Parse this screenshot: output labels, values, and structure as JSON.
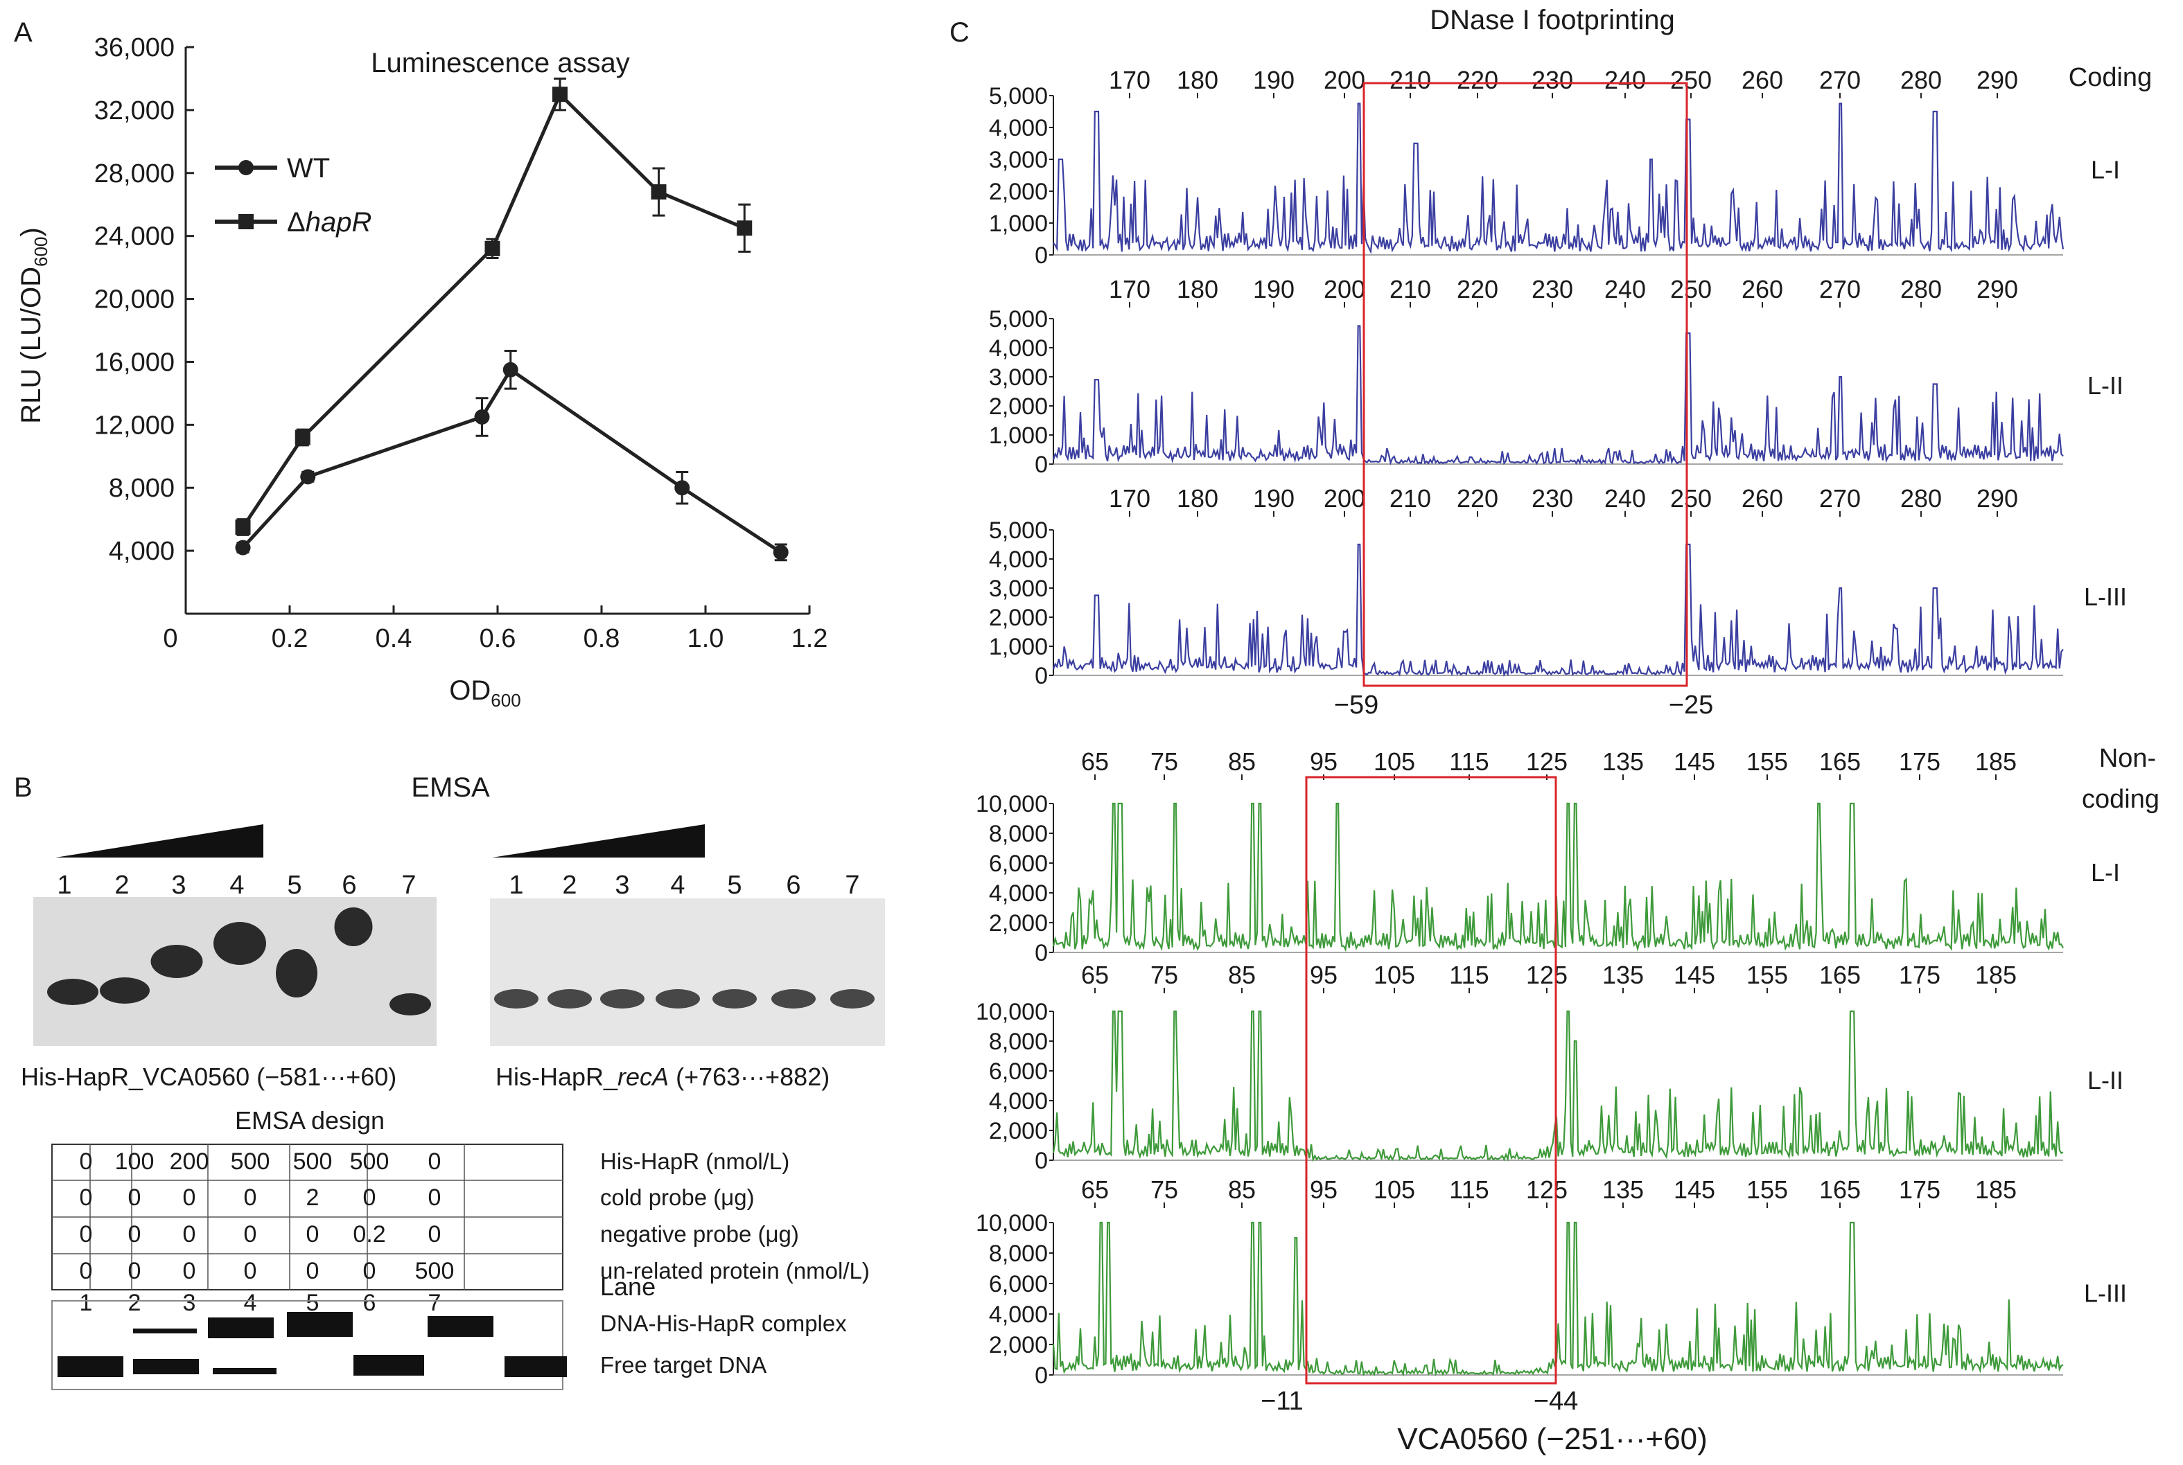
{
  "panelA": {
    "letter": "A",
    "title": "Luminescence assay",
    "ylabel": "RLU (LU/OD",
    "ylabel_sub": "600",
    "ylabel_close": ")",
    "xlabel": "OD",
    "xlabel_sub": "600",
    "legend_wt": "WT",
    "legend_delta": "Δ",
    "legend_hapr": "hapR"
  },
  "panelB": {
    "letter": "B",
    "title": "EMSA",
    "caption_left": "His-HapR_VCA0560 (−581···+60)",
    "caption_right_pre": "His-HapR_",
    "caption_right_gene": "recA",
    "caption_right_post": " (+763···+882)",
    "lanes": [
      "1",
      "2",
      "3",
      "4",
      "5",
      "6",
      "7"
    ],
    "design_title": "EMSA design",
    "design_rows": [
      {
        "label": "His-HapR (nmol/L)",
        "values": [
          "0",
          "100",
          "200",
          "500",
          "500",
          "500",
          "0"
        ]
      },
      {
        "label": "cold probe (μg)",
        "values": [
          "0",
          "0",
          "0",
          "0",
          "2",
          "0",
          "0"
        ]
      },
      {
        "label": "negative probe (μg)",
        "values": [
          "0",
          "0",
          "0",
          "0",
          "0",
          "0.2",
          "0"
        ]
      },
      {
        "label": "un-related protein (nmol/L)",
        "values": [
          "0",
          "0",
          "0",
          "0",
          "0",
          "0",
          "500"
        ]
      }
    ],
    "lane_label": "Lane",
    "complex_label": "DNA-His-HapR complex",
    "free_label": "Free target DNA"
  },
  "panelC": {
    "letter": "C",
    "title": "DNase I footprinting",
    "coding_label": "Coding",
    "noncoding_label_1": "Non-",
    "noncoding_label_2": "coding",
    "lane_names": [
      "L-I",
      "L-II",
      "L-III"
    ],
    "coding_ticks": [
      "170",
      "180",
      "190",
      "200",
      "210",
      "220",
      "230",
      "240",
      "250",
      "260",
      "270",
      "280",
      "290"
    ],
    "coding_yticks": [
      "0",
      "1,000",
      "2,000",
      "3,000",
      "4,000",
      "5,000"
    ],
    "coding_box_labels": [
      "−59",
      "−25"
    ],
    "noncoding_ticks": [
      "65",
      "75",
      "85",
      "95",
      "105",
      "115",
      "125",
      "135",
      "145",
      "155",
      "165",
      "175",
      "185"
    ],
    "noncoding_yticks": [
      "0",
      "2,000",
      "4,000",
      "6,000",
      "8,000",
      "10,000"
    ],
    "noncoding_box_labels": [
      "−11",
      "−44"
    ],
    "bottom_label": "VCA0560 (−251···+60)",
    "coding_color": "#3b3fa0",
    "noncoding_color": "#3e9a3a",
    "box_color": "#d9252a"
  },
  "chart_data": [
    {
      "type": "line",
      "title": "Luminescence assay",
      "xlabel": "OD600",
      "ylabel": "RLU (LU/OD600)",
      "xlim": [
        0,
        1.2
      ],
      "ylim": [
        0,
        36000
      ],
      "xticks": [
        "0",
        "0.2",
        "0.4",
        "0.6",
        "0.8",
        "1.0",
        "1.2"
      ],
      "yticks": [
        "4,000",
        "8,000",
        "12,000",
        "16,000",
        "20,000",
        "24,000",
        "28,000",
        "32,000",
        "36,000"
      ],
      "legend_position": "top-left",
      "series": [
        {
          "name": "WT",
          "marker": "circle",
          "x": [
            0.11,
            0.235,
            0.57,
            0.625,
            0.955,
            1.145
          ],
          "y": [
            4200,
            8700,
            12500,
            15500,
            8000,
            3900
          ],
          "err": [
            300,
            300,
            1200,
            1200,
            1000,
            500
          ]
        },
        {
          "name": "ΔhapR",
          "marker": "square",
          "x": [
            0.11,
            0.225,
            0.59,
            0.72,
            0.91,
            1.075
          ],
          "y": [
            5500,
            11200,
            23200,
            33000,
            26800,
            24500
          ],
          "err": [
            500,
            500,
            600,
            1000,
            1500,
            1500
          ]
        }
      ]
    }
  ]
}
